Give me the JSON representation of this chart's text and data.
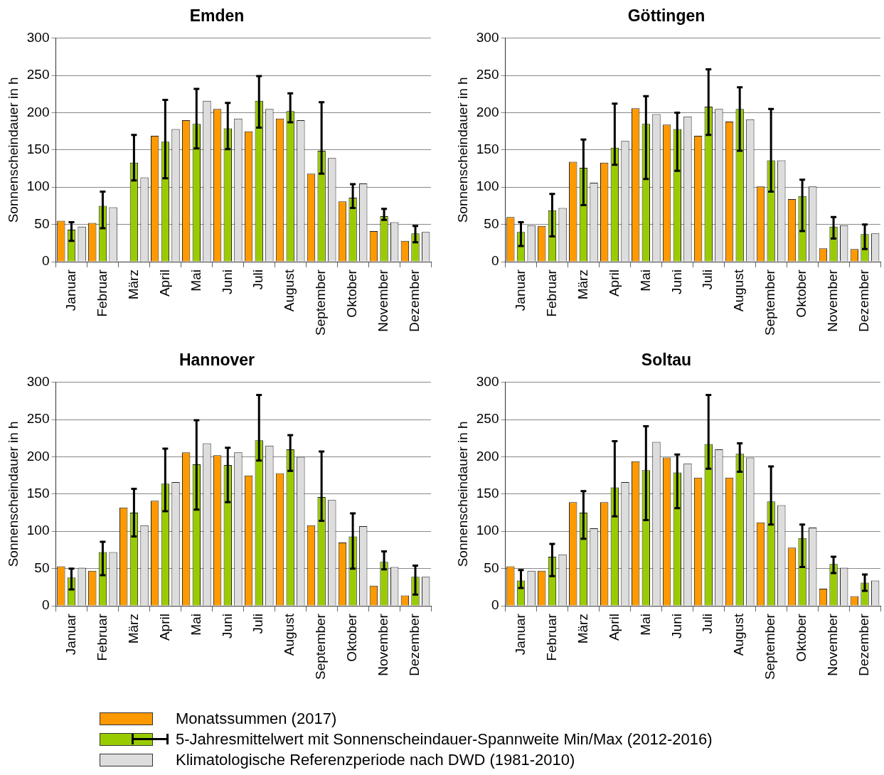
{
  "chart_data": [
    {
      "type": "bar",
      "title": "Emden",
      "ylabel": "Sonnenscheindauer in h",
      "categories": [
        "Januar",
        "Februar",
        "März",
        "April",
        "Mai",
        "Juni",
        "Juli",
        "August",
        "September",
        "Oktober",
        "November",
        "Dezember"
      ],
      "ylim": [
        0,
        300
      ],
      "yticks": [
        0,
        50,
        100,
        150,
        200,
        250,
        300
      ],
      "grid": "y",
      "legend": "bottom",
      "series": [
        {
          "name": "Monatssummen (2017)",
          "color": "#ff9900",
          "values": [
            55,
            52,
            null,
            169,
            190,
            205,
            175,
            192,
            118,
            81,
            41,
            28
          ]
        },
        {
          "name": "5-Jahresmittelwert mit Sonnenscheindauer-Spannweite Min/Max (2012-2016)",
          "color": "#99cc00",
          "values": [
            43,
            75,
            133,
            161,
            185,
            179,
            216,
            202,
            149,
            86,
            61,
            38
          ],
          "errors": [
            [
              28,
              53
            ],
            [
              45,
              94
            ],
            [
              109,
              170
            ],
            [
              112,
              217
            ],
            [
              152,
              232
            ],
            [
              151,
              213
            ],
            [
              180,
              249
            ],
            [
              187,
              226
            ],
            [
              118,
              214
            ],
            [
              72,
              104
            ],
            [
              56,
              71
            ],
            [
              26,
              48
            ]
          ]
        },
        {
          "name": "Klimatologische Referenzperiode nach DWD (1981-2010)",
          "color": "#dddddd",
          "values": [
            47,
            73,
            113,
            178,
            216,
            192,
            205,
            190,
            139,
            105,
            53,
            40
          ]
        }
      ]
    },
    {
      "type": "bar",
      "title": "Göttingen",
      "ylabel": "Sonnenscheindauer in h",
      "categories": [
        "Januar",
        "Februar",
        "März",
        "April",
        "Mai",
        "Juni",
        "Juli",
        "August",
        "September",
        "Oktober",
        "November",
        "Dezember"
      ],
      "ylim": [
        0,
        300
      ],
      "yticks": [
        0,
        50,
        100,
        150,
        200,
        250,
        300
      ],
      "grid": "y",
      "series": [
        {
          "color": "#ff9900",
          "values": [
            60,
            48,
            134,
            133,
            206,
            184,
            169,
            188,
            101,
            84,
            18,
            17
          ]
        },
        {
          "color": "#99cc00",
          "values": [
            40,
            69,
            126,
            153,
            185,
            178,
            208,
            205,
            136,
            88,
            47,
            37
          ],
          "errors": [
            [
              21,
              53
            ],
            [
              34,
              91
            ],
            [
              76,
              164
            ],
            [
              130,
              212
            ],
            [
              111,
              222
            ],
            [
              122,
              200
            ],
            [
              170,
              258
            ],
            [
              149,
              234
            ],
            [
              94,
              205
            ],
            [
              41,
              110
            ],
            [
              31,
              60
            ],
            [
              17,
              50
            ]
          ]
        },
        {
          "color": "#dddddd",
          "values": [
            49,
            72,
            106,
            162,
            198,
            195,
            205,
            191,
            136,
            101,
            49,
            38
          ]
        }
      ]
    },
    {
      "type": "bar",
      "title": "Hannover",
      "ylabel": "Sonnenscheindauer in h",
      "categories": [
        "Januar",
        "Februar",
        "März",
        "April",
        "Mai",
        "Juni",
        "Juli",
        "August",
        "September",
        "Oktober",
        "November",
        "Dezember"
      ],
      "ylim": [
        0,
        300
      ],
      "yticks": [
        0,
        50,
        100,
        150,
        200,
        250,
        300
      ],
      "grid": "y",
      "series": [
        {
          "color": "#ff9900",
          "values": [
            53,
            47,
            132,
            141,
            206,
            202,
            175,
            178,
            108,
            85,
            27,
            14
          ]
        },
        {
          "color": "#99cc00",
          "values": [
            38,
            72,
            125,
            164,
            190,
            189,
            222,
            210,
            146,
            93,
            59,
            39
          ],
          "errors": [
            [
              22,
              50
            ],
            [
              41,
              86
            ],
            [
              93,
              157
            ],
            [
              127,
              211
            ],
            [
              129,
              249
            ],
            [
              139,
              212
            ],
            [
              195,
              283
            ],
            [
              181,
              229
            ],
            [
              114,
              207
            ],
            [
              50,
              124
            ],
            [
              49,
              73
            ],
            [
              15,
              54
            ]
          ]
        },
        {
          "color": "#dddddd",
          "values": [
            51,
            72,
            108,
            166,
            218,
            206,
            215,
            200,
            142,
            107,
            52,
            39
          ]
        }
      ]
    },
    {
      "type": "bar",
      "title": "Soltau",
      "ylabel": "Sonnenscheindauer in h",
      "categories": [
        "Januar",
        "Februar",
        "März",
        "April",
        "Mai",
        "Juni",
        "Juli",
        "August",
        "September",
        "Oktober",
        "November",
        "Dezember"
      ],
      "ylim": [
        0,
        300
      ],
      "yticks": [
        0,
        50,
        100,
        150,
        200,
        250,
        300
      ],
      "grid": "y",
      "series": [
        {
          "color": "#ff9900",
          "values": [
            53,
            47,
            139,
            139,
            194,
            199,
            172,
            172,
            112,
            78,
            23,
            13
          ]
        },
        {
          "color": "#99cc00",
          "values": [
            34,
            66,
            125,
            159,
            182,
            179,
            217,
            204,
            140,
            91,
            56,
            31
          ],
          "errors": [
            [
              24,
              48
            ],
            [
              40,
              83
            ],
            [
              90,
              154
            ],
            [
              120,
              221
            ],
            [
              115,
              241
            ],
            [
              131,
              203
            ],
            [
              184,
              283
            ],
            [
              180,
              218
            ],
            [
              109,
              187
            ],
            [
              52,
              109
            ],
            [
              44,
              66
            ],
            [
              20,
              42
            ]
          ]
        },
        {
          "color": "#dddddd",
          "values": [
            47,
            69,
            104,
            166,
            220,
            191,
            210,
            199,
            135,
            105,
            51,
            34
          ]
        }
      ]
    }
  ]
}
